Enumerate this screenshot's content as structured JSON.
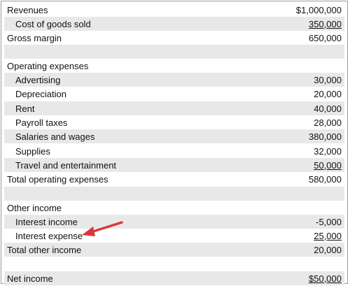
{
  "statement": {
    "rows": [
      {
        "label": "Revenues",
        "amount": "$1,000,000"
      },
      {
        "label": "Cost of goods sold",
        "amount": "350,000"
      },
      {
        "label": "Gross margin",
        "amount": "650,000"
      },
      {
        "label": "",
        "amount": ""
      },
      {
        "label": "Operating expenses",
        "amount": ""
      },
      {
        "label": "Advertising",
        "amount": "30,000"
      },
      {
        "label": "Depreciation",
        "amount": "20,000"
      },
      {
        "label": "Rent",
        "amount": "40,000"
      },
      {
        "label": "Payroll taxes",
        "amount": "28,000"
      },
      {
        "label": "Salaries and wages",
        "amount": "380,000"
      },
      {
        "label": "Supplies",
        "amount": "32,000"
      },
      {
        "label": "Travel and entertainment",
        "amount": "50,000"
      },
      {
        "label": "Total operating expenses",
        "amount": "580,000"
      },
      {
        "label": "",
        "amount": ""
      },
      {
        "label": "Other income",
        "amount": ""
      },
      {
        "label": "Interest income",
        "amount": "-5,000"
      },
      {
        "label": "Interest expense",
        "amount": "25,000"
      },
      {
        "label": "Total other income",
        "amount": "20,000"
      },
      {
        "label": "",
        "amount": ""
      },
      {
        "label": "Net income",
        "amount": "$50,000"
      }
    ]
  },
  "colors": {
    "shade": "#e8e8e8",
    "border": "#9a9a9a",
    "arrow": "#d9383a"
  }
}
